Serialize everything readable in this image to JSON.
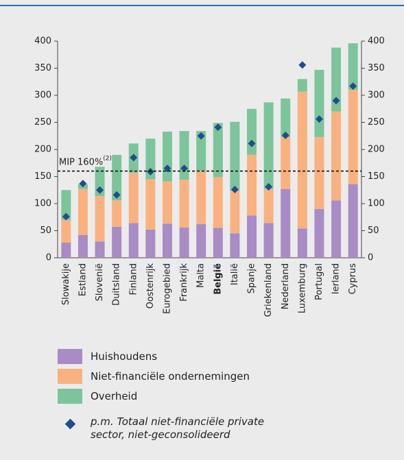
{
  "chart_data": {
    "type": "bar",
    "stacked": true,
    "categories": [
      "Slowakije",
      "Estland",
      "Slovenië",
      "Duitsland",
      "Finland",
      "Oostenrijk",
      "Eurogebied",
      "Frankrijk",
      "Malta",
      "België",
      "Italië",
      "Spanje",
      "Griekenland",
      "Nederland",
      "Luxemburg",
      "Portugal",
      "Ierland",
      "Cyprus"
    ],
    "series": [
      {
        "name": "Huishoudens",
        "color": "#a98bc5",
        "values": [
          28,
          42,
          30,
          57,
          64,
          52,
          63,
          56,
          62,
          55,
          45,
          78,
          64,
          127,
          54,
          90,
          106,
          136
        ]
      },
      {
        "name": "Niet-financiële ondernemingen",
        "color": "#f9b27f",
        "values": [
          42,
          85,
          84,
          49,
          93,
          93,
          78,
          88,
          98,
          94,
          79,
          112,
          63,
          96,
          253,
          133,
          164,
          174
        ]
      },
      {
        "name": "Overheid",
        "color": "#7cc59a",
        "values": [
          55,
          9,
          54,
          84,
          54,
          75,
          92,
          90,
          74,
          100,
          127,
          85,
          160,
          71,
          23,
          124,
          118,
          86
        ]
      },
      {
        "name": "p.m. Totaal niet-financiële private sector, niet-geconsolideerd",
        "color": "#1f4e8c",
        "style": "diamond",
        "values": [
          76,
          137,
          125,
          116,
          185,
          159,
          165,
          165,
          225,
          241,
          126,
          211,
          131,
          226,
          356,
          256,
          290,
          317
        ]
      }
    ],
    "reference_line": {
      "value": 160,
      "label": "MIP 160%",
      "note": "(2)"
    },
    "ylim": [
      0,
      400
    ],
    "yticks": [
      0,
      50,
      100,
      150,
      200,
      250,
      300,
      350,
      400
    ],
    "y2lim": [
      0,
      400
    ],
    "y2ticks": [
      0,
      50,
      100,
      150,
      200,
      250,
      300,
      350,
      400
    ]
  }
}
